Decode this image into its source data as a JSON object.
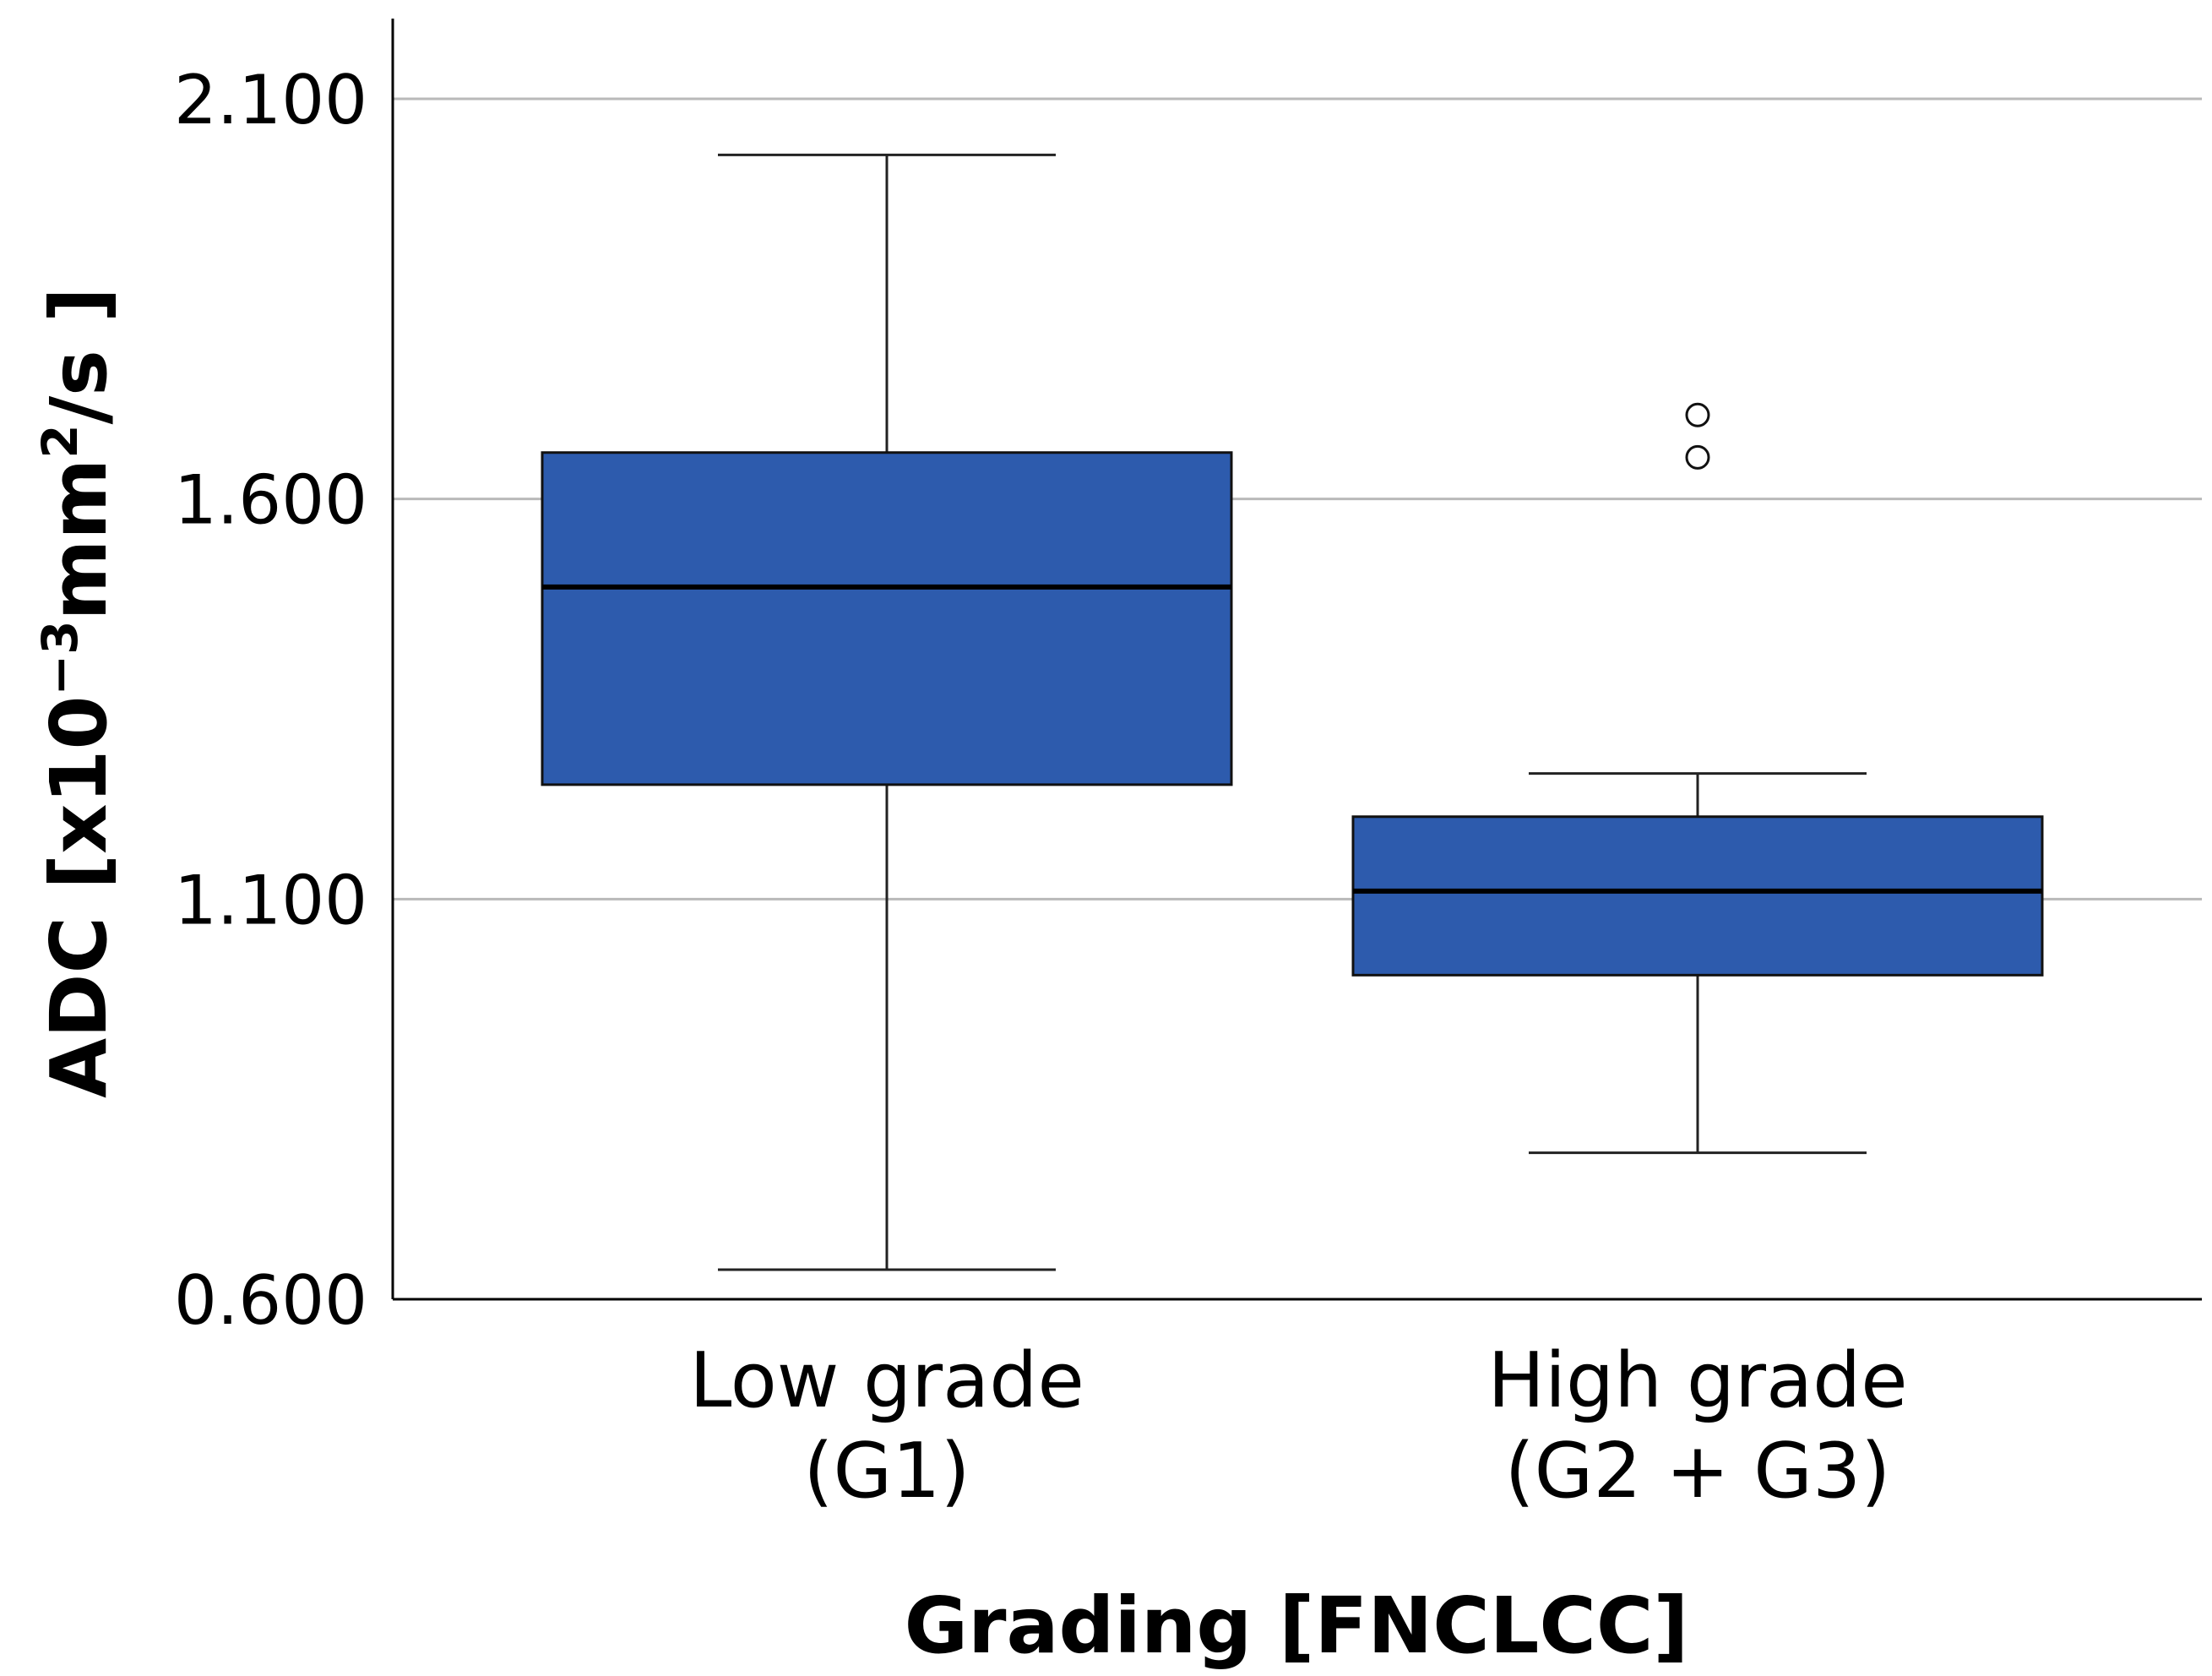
{
  "chart_data": {
    "type": "boxplot",
    "title": "",
    "xlabel": "Grading [FNCLCC]",
    "ylabel": {
      "prefix": "ADC [x10",
      "exp1": "−3",
      "mid": "mm",
      "exp2": "2",
      "suffix": "/s ]"
    },
    "ylim": [
      0.6,
      2.2
    ],
    "yticks": [
      0.6,
      1.1,
      1.6,
      2.1
    ],
    "ytick_labels": [
      "0.600",
      "1.100",
      "1.600",
      "2.100"
    ],
    "grid": true,
    "box_color": "#2d5bad",
    "series": [
      {
        "name": "Low grade (G1)",
        "category_lines": [
          "Low grade",
          "(G1)"
        ],
        "whisker_low": 0.637,
        "q1": 1.243,
        "median": 1.49,
        "q3": 1.658,
        "whisker_high": 2.03,
        "outliers": []
      },
      {
        "name": "High grade (G2 + G3)",
        "category_lines": [
          "High grade",
          "(G2 + G3)"
        ],
        "whisker_low": 0.783,
        "q1": 1.005,
        "median": 1.11,
        "q3": 1.203,
        "whisker_high": 1.257,
        "outliers": [
          1.652,
          1.705
        ]
      }
    ]
  }
}
